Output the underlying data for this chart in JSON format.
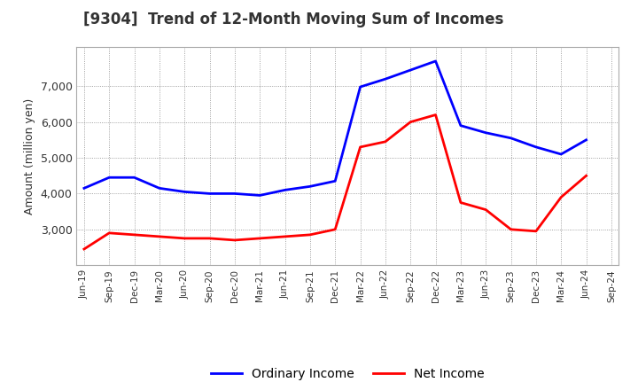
{
  "title": "[9304]  Trend of 12-Month Moving Sum of Incomes",
  "ylabel": "Amount (million yen)",
  "x_labels": [
    "Jun-19",
    "Sep-19",
    "Dec-19",
    "Mar-20",
    "Jun-20",
    "Sep-20",
    "Dec-20",
    "Mar-21",
    "Jun-21",
    "Sep-21",
    "Dec-21",
    "Mar-22",
    "Jun-22",
    "Sep-22",
    "Dec-22",
    "Mar-23",
    "Jun-23",
    "Sep-23",
    "Dec-23",
    "Mar-24",
    "Jun-24",
    "Sep-24"
  ],
  "ordinary_income": [
    4150,
    4450,
    4450,
    4150,
    4050,
    4000,
    4000,
    3950,
    4100,
    4200,
    4350,
    6980,
    7200,
    7450,
    7700,
    5900,
    5700,
    5550,
    5300,
    5100,
    5500,
    null
  ],
  "net_income": [
    2450,
    2900,
    2850,
    2800,
    2750,
    2750,
    2700,
    2750,
    2800,
    2850,
    3000,
    5300,
    5450,
    6000,
    6200,
    3750,
    3550,
    3000,
    2950,
    3900,
    4500,
    null
  ],
  "ordinary_color": "#0000ff",
  "net_color": "#ff0000",
  "ylim_min": 2000,
  "ylim_max": 8100,
  "yticks": [
    3000,
    4000,
    5000,
    6000,
    7000
  ],
  "bg_color": "#ffffff",
  "plot_bg_color": "#ffffff",
  "grid_color": "#888888",
  "title_fontsize": 12,
  "legend_labels": [
    "Ordinary Income",
    "Net Income"
  ]
}
